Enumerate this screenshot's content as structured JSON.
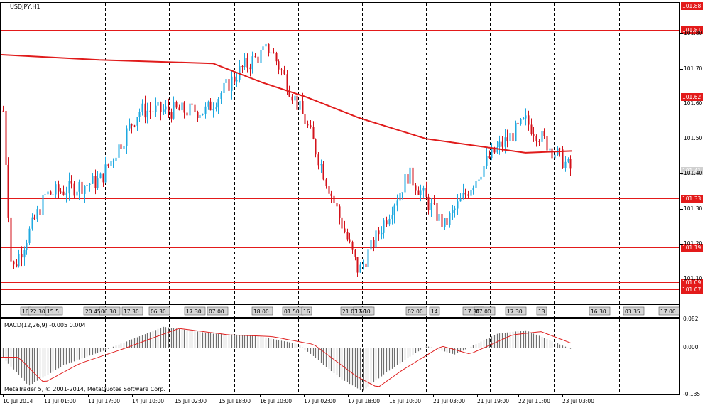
{
  "window": {
    "symbol_label": "USDJPY,H1",
    "watermark": "MetaTrader 5, © 2001-2014, MetaQuotes Software Corp."
  },
  "colors": {
    "up_candle": "#1fa9e0",
    "down_candle": "#d3131b",
    "level_line": "#e31a1a",
    "ma_line": "#e01b1b",
    "grid": "#000000",
    "macd_hist": "#707070",
    "macd_signal": "#e02020"
  },
  "price_axis": {
    "ticks": [
      "101.80",
      "101.70",
      "101.60",
      "101.50",
      "101.40",
      "101.30",
      "101.20",
      "101.10"
    ],
    "level_labels": [
      "101.88",
      "101.81",
      "101.62",
      "101.33",
      "101.19",
      "101.09",
      "101.07"
    ],
    "current_price": "101.41"
  },
  "time_axis": {
    "labels": [
      "10 Jul 2014",
      "11 Jul 01:00",
      "11 Jul 17:00",
      "14 Jul 10:00",
      "15 Jul 02:00",
      "15 Jul 18:00",
      "16 Jul 10:00",
      "17 Jul 02:00",
      "17 Jul 18:00",
      "18 Jul 10:00",
      "21 Jul 03:00",
      "21 Jul 19:00",
      "22 Jul 11:00",
      "23 Jul 03:00"
    ]
  },
  "event_markers": [
    "16",
    "22:30",
    "15:5",
    "20:45",
    "06:30",
    "17:30",
    "06:30",
    "17:30",
    "07:00",
    "18:00",
    "01:50",
    "16",
    "21:01:50",
    "17:30",
    "02:00",
    "14",
    "17:30",
    "07:00",
    "17:30",
    "13",
    "16:30",
    "03:35",
    "17:00"
  ],
  "macd": {
    "label": "MACD(12,26,9) -0.005 0.004",
    "axis_ticks": [
      "0.082",
      "0.000",
      "-0.135"
    ]
  },
  "chart_data": {
    "type": "candlestick",
    "symbol": "USDJPY",
    "timeframe": "H1",
    "x_start": "10 Jul 2014",
    "x_end": "23 Jul 03:00",
    "ylim": [
      101.06,
      101.89
    ],
    "horizontal_levels": [
      101.88,
      101.81,
      101.62,
      101.33,
      101.19,
      101.09,
      101.07
    ],
    "moving_average_approx": [
      {
        "time": "10 Jul 2014",
        "value": 101.74
      },
      {
        "time": "11 Jul 17:00",
        "value": 101.725
      },
      {
        "time": "15 Jul 02:00",
        "value": 101.715
      },
      {
        "time": "16 Jul 10:00",
        "value": 101.66
      },
      {
        "time": "17 Jul 02:00",
        "value": 101.62
      },
      {
        "time": "17 Jul 18:00",
        "value": 101.56
      },
      {
        "time": "21 Jul 03:00",
        "value": 101.5
      },
      {
        "time": "22 Jul 11:00",
        "value": 101.46
      },
      {
        "time": "23 Jul 03:00",
        "value": 101.465
      }
    ],
    "close_path_approx": [
      {
        "time": "10 Jul 2014",
        "value": 101.58
      },
      {
        "time": "10 Jul 2014",
        "value": 101.12
      },
      {
        "time": "11 Jul 01:00",
        "value": 101.34
      },
      {
        "time": "11 Jul 17:00",
        "value": 101.38
      },
      {
        "time": "14 Jul 10:00",
        "value": 101.58
      },
      {
        "time": "15 Jul 02:00",
        "value": 101.58
      },
      {
        "time": "15 Jul 18:00",
        "value": 101.7
      },
      {
        "time": "16 Jul 10:00",
        "value": 101.76
      },
      {
        "time": "17 Jul 02:00",
        "value": 101.55
      },
      {
        "time": "17 Jul 18:00",
        "value": 101.12
      },
      {
        "time": "18 Jul 10:00",
        "value": 101.4
      },
      {
        "time": "21 Jul 03:00",
        "value": 101.25
      },
      {
        "time": "21 Jul 19:00",
        "value": 101.45
      },
      {
        "time": "22 Jul 11:00",
        "value": 101.55
      },
      {
        "time": "23 Jul 03:00",
        "value": 101.41
      }
    ],
    "current_price": 101.41,
    "macd": {
      "params": "12,26,9",
      "main": -0.005,
      "signal": 0.004,
      "ylim": [
        -0.135,
        0.082
      ]
    }
  }
}
